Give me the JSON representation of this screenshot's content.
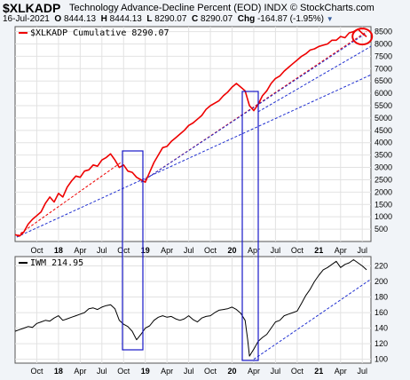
{
  "header": {
    "symbol": "$XLKADP",
    "title": "Technology Advance-Decline Percent (EOD)",
    "exchange": "INDX",
    "copyright": "© StockCharts.com",
    "date": "16-Jul-2021",
    "open_label": "O",
    "open": "8444.13",
    "high_label": "H",
    "high": "8444.13",
    "low_label": "L",
    "low": "8290.07",
    "close_label": "C",
    "close": "8290.07",
    "chg_label": "Chg",
    "chg": "-164.87 (-1.95%)"
  },
  "colors": {
    "main_line": "#ee0000",
    "iwm_line": "#000000",
    "trend_red": "#ee0000",
    "trend_blue": "#2030d0",
    "box": "#1818c8",
    "grid": "#e2e2e2",
    "panel_bg": "#ffffff",
    "page_bg": "#f1f4f8"
  },
  "chart_data": [
    {
      "type": "line",
      "legend": "$XLKADP Cumulative 8290.07",
      "legend_placement": "top-left",
      "y_axis_side": "right",
      "ylim": [
        0,
        8700
      ],
      "yticks": [
        500,
        1000,
        1500,
        2000,
        2500,
        3000,
        3500,
        4000,
        4500,
        5000,
        5500,
        6000,
        6500,
        7000,
        7500,
        8000,
        8500
      ],
      "xticks": [
        {
          "label": "Oct",
          "x": 2017.75,
          "bold": false
        },
        {
          "label": "18",
          "x": 2018.0,
          "bold": true
        },
        {
          "label": "Apr",
          "x": 2018.25,
          "bold": false
        },
        {
          "label": "Jul",
          "x": 2018.5,
          "bold": false
        },
        {
          "label": "Oct",
          "x": 2018.75,
          "bold": false
        },
        {
          "label": "19",
          "x": 2019.0,
          "bold": true
        },
        {
          "label": "Apr",
          "x": 2019.25,
          "bold": false
        },
        {
          "label": "Jul",
          "x": 2019.5,
          "bold": false
        },
        {
          "label": "Oct",
          "x": 2019.75,
          "bold": false
        },
        {
          "label": "20",
          "x": 2020.0,
          "bold": true
        },
        {
          "label": "Apr",
          "x": 2020.25,
          "bold": false
        },
        {
          "label": "Jul",
          "x": 2020.5,
          "bold": false
        },
        {
          "label": "Oct",
          "x": 2020.75,
          "bold": false
        },
        {
          "label": "21",
          "x": 2021.0,
          "bold": true
        },
        {
          "label": "Apr",
          "x": 2021.25,
          "bold": false
        },
        {
          "label": "Jul",
          "x": 2021.5,
          "bold": false
        }
      ],
      "xlim": [
        2017.5,
        2021.6
      ],
      "grid": true,
      "series": [
        {
          "name": "$XLKADP Cumulative",
          "x": [
            2017.5,
            2017.55,
            2017.6,
            2017.65,
            2017.7,
            2017.75,
            2017.8,
            2017.85,
            2017.9,
            2017.95,
            2018.0,
            2018.05,
            2018.1,
            2018.15,
            2018.2,
            2018.25,
            2018.3,
            2018.35,
            2018.4,
            2018.45,
            2018.5,
            2018.55,
            2018.6,
            2018.65,
            2018.7,
            2018.75,
            2018.8,
            2018.85,
            2018.9,
            2018.95,
            2019.0,
            2019.05,
            2019.1,
            2019.15,
            2019.2,
            2019.25,
            2019.3,
            2019.35,
            2019.4,
            2019.45,
            2019.5,
            2019.55,
            2019.6,
            2019.65,
            2019.7,
            2019.75,
            2019.8,
            2019.85,
            2019.9,
            2019.95,
            2020.0,
            2020.05,
            2020.1,
            2020.15,
            2020.2,
            2020.25,
            2020.3,
            2020.35,
            2020.4,
            2020.45,
            2020.5,
            2020.55,
            2020.6,
            2020.65,
            2020.7,
            2020.75,
            2020.8,
            2020.85,
            2020.9,
            2020.95,
            2021.0,
            2021.05,
            2021.1,
            2021.15,
            2021.2,
            2021.25,
            2021.3,
            2021.35,
            2021.4,
            2021.45,
            2021.5,
            2021.55
          ],
          "values": [
            280,
            220,
            380,
            700,
            900,
            1050,
            1200,
            1550,
            1800,
            1600,
            1950,
            1800,
            2200,
            2450,
            2650,
            2600,
            2850,
            2900,
            3100,
            3050,
            3300,
            3400,
            3550,
            3300,
            3000,
            3100,
            2850,
            2800,
            2600,
            2500,
            2400,
            2800,
            3200,
            3500,
            3800,
            3850,
            4050,
            4200,
            4350,
            4500,
            4700,
            4800,
            4950,
            5100,
            5350,
            5500,
            5600,
            5700,
            5900,
            6050,
            6250,
            6400,
            6250,
            6100,
            5500,
            5300,
            5550,
            5900,
            6100,
            6400,
            6600,
            6700,
            6900,
            7050,
            7200,
            7350,
            7500,
            7600,
            7750,
            7800,
            7900,
            7950,
            8000,
            8150,
            8150,
            8300,
            8250,
            8450,
            8500,
            8600,
            8430,
            8290
          ]
        }
      ]
    },
    {
      "type": "line",
      "legend": "IWM 214.95",
      "legend_placement": "top-left",
      "y_axis_side": "right",
      "ylim": [
        95,
        232
      ],
      "yticks": [
        100,
        120,
        140,
        160,
        180,
        200,
        220
      ],
      "xticks": [
        {
          "label": "Oct",
          "x": 2017.75,
          "bold": false
        },
        {
          "label": "18",
          "x": 2018.0,
          "bold": true
        },
        {
          "label": "Apr",
          "x": 2018.25,
          "bold": false
        },
        {
          "label": "Jul",
          "x": 2018.5,
          "bold": false
        },
        {
          "label": "Oct",
          "x": 2018.75,
          "bold": false
        },
        {
          "label": "19",
          "x": 2019.0,
          "bold": true
        },
        {
          "label": "Apr",
          "x": 2019.25,
          "bold": false
        },
        {
          "label": "Jul",
          "x": 2019.5,
          "bold": false
        },
        {
          "label": "Oct",
          "x": 2019.75,
          "bold": false
        },
        {
          "label": "20",
          "x": 2020.0,
          "bold": true
        },
        {
          "label": "Apr",
          "x": 2020.25,
          "bold": false
        },
        {
          "label": "Jul",
          "x": 2020.5,
          "bold": false
        },
        {
          "label": "Oct",
          "x": 2020.75,
          "bold": false
        },
        {
          "label": "21",
          "x": 2021.0,
          "bold": true
        },
        {
          "label": "Apr",
          "x": 2021.25,
          "bold": false
        },
        {
          "label": "Jul",
          "x": 2021.5,
          "bold": false
        }
      ],
      "xlim": [
        2017.5,
        2021.6
      ],
      "grid": true,
      "series": [
        {
          "name": "IWM",
          "x": [
            2017.5,
            2017.55,
            2017.6,
            2017.65,
            2017.7,
            2017.75,
            2017.8,
            2017.85,
            2017.9,
            2017.95,
            2018.0,
            2018.05,
            2018.1,
            2018.15,
            2018.2,
            2018.25,
            2018.3,
            2018.35,
            2018.4,
            2018.45,
            2018.5,
            2018.55,
            2018.6,
            2018.65,
            2018.7,
            2018.75,
            2018.8,
            2018.85,
            2018.9,
            2018.95,
            2019.0,
            2019.05,
            2019.1,
            2019.15,
            2019.2,
            2019.25,
            2019.3,
            2019.35,
            2019.4,
            2019.45,
            2019.5,
            2019.55,
            2019.6,
            2019.65,
            2019.7,
            2019.75,
            2019.8,
            2019.85,
            2019.9,
            2019.95,
            2020.0,
            2020.05,
            2020.1,
            2020.15,
            2020.18,
            2020.2,
            2020.25,
            2020.3,
            2020.35,
            2020.4,
            2020.45,
            2020.5,
            2020.55,
            2020.6,
            2020.65,
            2020.7,
            2020.75,
            2020.8,
            2020.85,
            2020.9,
            2020.95,
            2021.0,
            2021.05,
            2021.1,
            2021.15,
            2021.2,
            2021.25,
            2021.3,
            2021.35,
            2021.4,
            2021.45,
            2021.5,
            2021.55
          ],
          "values": [
            136,
            138,
            140,
            142,
            141,
            146,
            148,
            150,
            149,
            153,
            156,
            150,
            152,
            154,
            156,
            158,
            160,
            165,
            166,
            164,
            167,
            169,
            170,
            165,
            150,
            145,
            142,
            136,
            125,
            132,
            140,
            143,
            150,
            154,
            156,
            154,
            155,
            152,
            150,
            152,
            156,
            151,
            148,
            153,
            155,
            156,
            160,
            163,
            164,
            165,
            167,
            164,
            159,
            150,
            125,
            104,
            113,
            123,
            128,
            132,
            140,
            148,
            150,
            156,
            158,
            160,
            162,
            172,
            182,
            190,
            200,
            208,
            215,
            218,
            222,
            226,
            218,
            222,
            224,
            228,
            224,
            220,
            215
          ]
        }
      ]
    }
  ]
}
